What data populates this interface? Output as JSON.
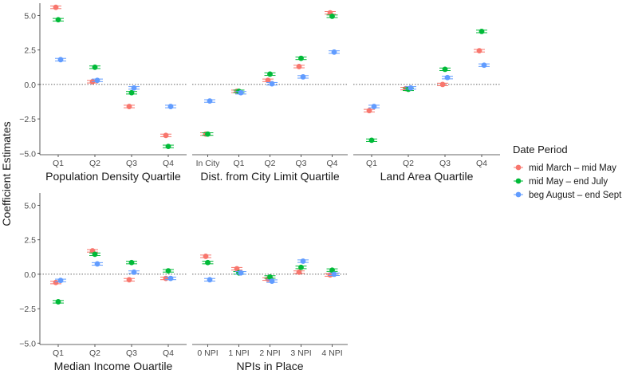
{
  "chart_data": {
    "type": "scatter",
    "ylabel": "Coefficient Estimates",
    "yticks": [
      5.0,
      2.5,
      0.0,
      -2.5,
      -5.0
    ],
    "ytick_labels": [
      "5.0",
      "2.5",
      "0.0",
      "−2.5",
      "−5.0"
    ],
    "ylim": [
      -5.1,
      5.9
    ],
    "reference_line": 0,
    "legend": {
      "title": "Date Period",
      "placement": "right",
      "entries": [
        {
          "name": "mid March – mid May",
          "color": "#f8766d"
        },
        {
          "name": "mid May – end July",
          "color": "#00ba38"
        },
        {
          "name": "beg August – end Sept",
          "color": "#619cff"
        }
      ]
    },
    "panels": [
      {
        "title": "Population Density Quartile",
        "categories": [
          "Q1",
          "Q2",
          "Q3",
          "Q4"
        ],
        "series": [
          {
            "name": "mid March – mid May",
            "values": [
              5.6,
              0.2,
              -1.6,
              -3.7
            ]
          },
          {
            "name": "mid May – end July",
            "values": [
              4.7,
              1.25,
              -0.6,
              -4.5
            ]
          },
          {
            "name": "beg August – end Sept",
            "values": [
              1.8,
              0.3,
              -0.25,
              -1.6
            ]
          }
        ]
      },
      {
        "title": "Dist. from City Limit Quartile",
        "categories": [
          "In City",
          "Q1",
          "Q2",
          "Q3",
          "Q4"
        ],
        "series": [
          {
            "name": "mid March – mid May",
            "values": [
              -3.6,
              -0.5,
              0.3,
              1.3,
              5.2
            ]
          },
          {
            "name": "mid May – end July",
            "values": [
              -3.6,
              -0.5,
              0.75,
              1.9,
              4.95
            ]
          },
          {
            "name": "beg August – end Sept",
            "values": [
              -1.2,
              -0.6,
              0.05,
              0.55,
              2.35
            ]
          }
        ]
      },
      {
        "title": "Land Area Quartile",
        "categories": [
          "Q1",
          "Q2",
          "Q3",
          "Q4"
        ],
        "series": [
          {
            "name": "mid March – mid May",
            "values": [
              -1.9,
              -0.3,
              0.0,
              2.45
            ]
          },
          {
            "name": "mid May – end July",
            "values": [
              -4.05,
              -0.35,
              1.1,
              3.85
            ]
          },
          {
            "name": "beg August – end Sept",
            "values": [
              -1.6,
              -0.25,
              0.5,
              1.4
            ]
          }
        ]
      },
      {
        "title": "Median Income Quartile",
        "categories": [
          "Q1",
          "Q2",
          "Q3",
          "Q4"
        ],
        "series": [
          {
            "name": "mid March – mid May",
            "values": [
              -0.6,
              1.7,
              -0.4,
              -0.3
            ]
          },
          {
            "name": "mid May – end July",
            "values": [
              -2.0,
              1.45,
              0.85,
              0.25
            ]
          },
          {
            "name": "beg August – end Sept",
            "values": [
              -0.45,
              0.75,
              0.15,
              -0.3
            ]
          }
        ]
      },
      {
        "title": "NPIs in Place",
        "categories": [
          "0 NPI",
          "1 NPI",
          "2 NPI",
          "3 NPI",
          "4 NPI"
        ],
        "series": [
          {
            "name": "mid March – mid May",
            "values": [
              1.3,
              0.4,
              -0.35,
              0.15,
              -0.05
            ]
          },
          {
            "name": "mid May – end July",
            "values": [
              0.85,
              0.1,
              -0.2,
              0.5,
              0.3
            ]
          },
          {
            "name": "beg August – end Sept",
            "values": [
              -0.4,
              0.1,
              -0.5,
              0.95,
              0.0
            ]
          }
        ]
      }
    ]
  }
}
